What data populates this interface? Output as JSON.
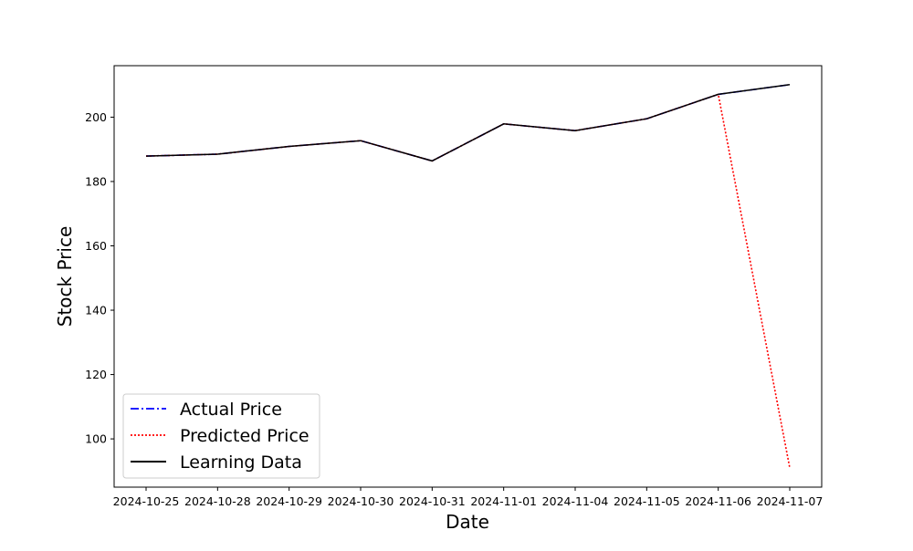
{
  "chart_data": {
    "type": "line",
    "title": "",
    "xlabel": "Date",
    "ylabel": "Stock Price",
    "categories": [
      "2024-10-25",
      "2024-10-28",
      "2024-10-29",
      "2024-10-30",
      "2024-10-31",
      "2024-11-01",
      "2024-11-04",
      "2024-11-05",
      "2024-11-06",
      "2024-11-07"
    ],
    "ylim": [
      85,
      216
    ],
    "yticks": [
      100,
      120,
      140,
      160,
      180,
      200
    ],
    "grid": false,
    "legend_position": "lower-left",
    "series": [
      {
        "name": "Actual Price",
        "color": "#0000ff",
        "style": "dashdot",
        "values": [
          187.9,
          188.5,
          190.9,
          192.7,
          186.4,
          197.9,
          195.8,
          199.5,
          207.1,
          210.1
        ]
      },
      {
        "name": "Predicted Price",
        "color": "#ff0000",
        "style": "dotted",
        "values": [
          187.9,
          188.5,
          190.9,
          192.7,
          186.4,
          197.9,
          195.8,
          199.5,
          207.1,
          91.0
        ]
      },
      {
        "name": "Learning Data",
        "color": "#000000",
        "style": "solid",
        "values": [
          187.9,
          188.5,
          190.9,
          192.7,
          186.4,
          197.9,
          195.8,
          199.5,
          207.1,
          210.1
        ]
      }
    ]
  }
}
